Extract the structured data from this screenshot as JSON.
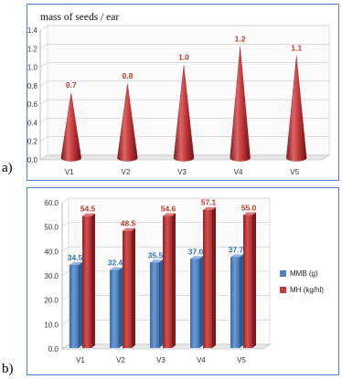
{
  "panel_labels": [
    "a)",
    "b)"
  ],
  "colors": {
    "cone": "#c0393b",
    "mmb": "#4f81bd",
    "mh": "#c0393b",
    "mh_label": "#c0392b",
    "mmb_label": "#2e75b6",
    "border": "#4f81bd"
  },
  "chart_data": [
    {
      "type": "bar",
      "shape": "cone",
      "title": "mass of seeds / ear",
      "categories": [
        "V1",
        "V2",
        "V3",
        "V4",
        "V5"
      ],
      "values": [
        0.7,
        0.8,
        1.0,
        1.2,
        1.1
      ],
      "value_labels": [
        "0.7",
        "0.8",
        "1.0",
        "1.2",
        "1.1"
      ],
      "yticks": [
        "0.0",
        "0.2",
        "0.4",
        "0.6",
        "0.8",
        "1.0",
        "1.2",
        "1.4"
      ],
      "ylim": [
        0,
        1.4
      ],
      "grid": true
    },
    {
      "type": "bar",
      "shape": "3d-column",
      "categories": [
        "V1",
        "V2",
        "V3",
        "V4",
        "V5"
      ],
      "series": [
        {
          "name": "MMB (g)",
          "values": [
            34.5,
            32.4,
            35.5,
            37.0,
            37.7
          ],
          "labels": [
            "34.5",
            "32.4",
            "35.5",
            "37.0",
            "37.7"
          ]
        },
        {
          "name": "MH (kg/hl)",
          "values": [
            54.5,
            48.5,
            54.6,
            57.1,
            55.0
          ],
          "labels": [
            "54.5",
            "48.5",
            "54.6",
            "57.1",
            "55.0"
          ]
        }
      ],
      "yticks": [
        "0.0",
        "10.0",
        "20.0",
        "30.0",
        "40.0",
        "50.0",
        "60.0"
      ],
      "ylim": [
        0,
        60
      ],
      "legend": "right",
      "grid": true
    }
  ]
}
